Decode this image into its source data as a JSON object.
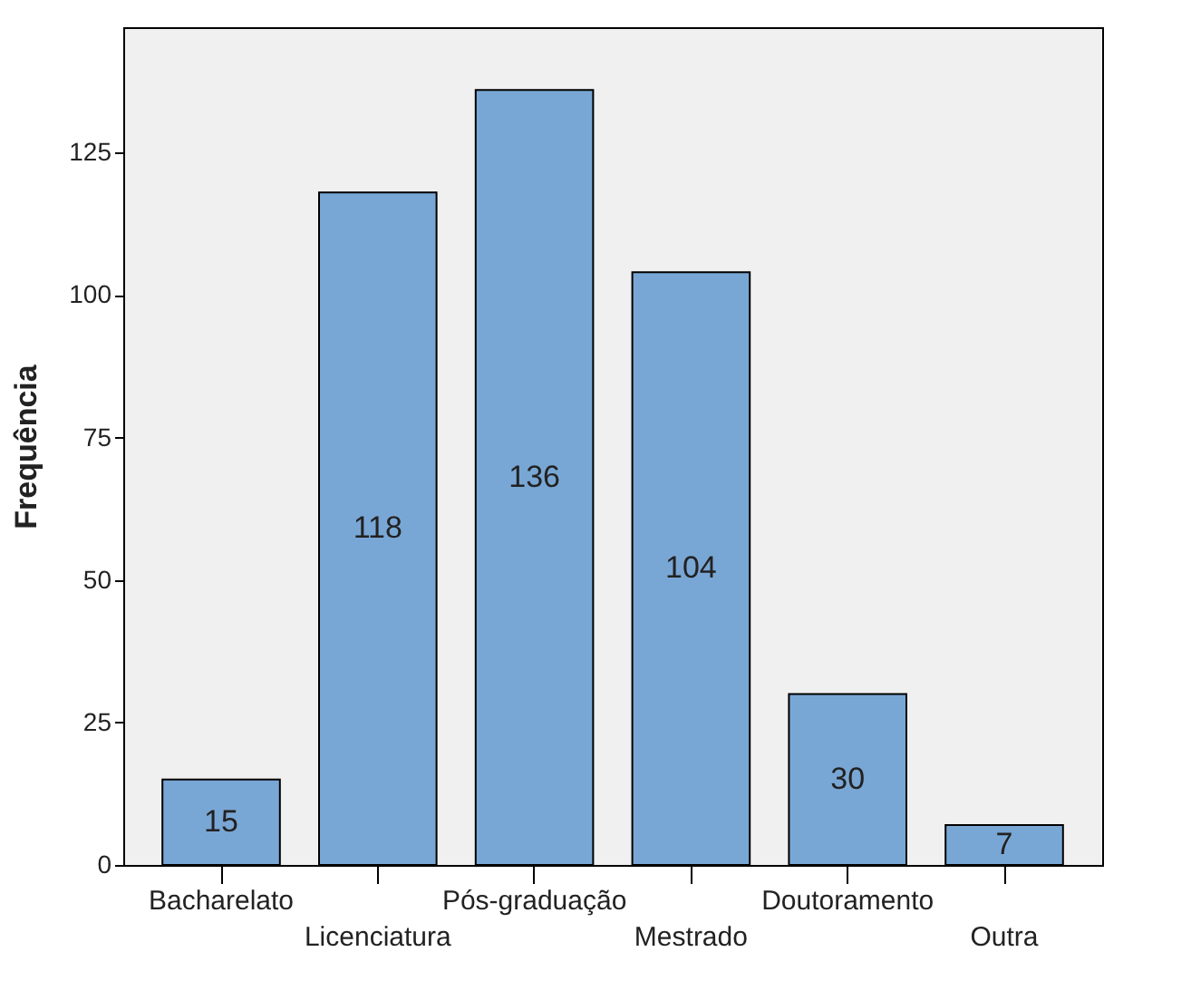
{
  "chart_data": {
    "type": "bar",
    "ylabel": "Frequência",
    "categories": [
      "Bacharelato",
      "Licenciatura",
      "Pós-graduação",
      "Mestrado",
      "Doutoramento",
      "Outra"
    ],
    "values": [
      15,
      118,
      136,
      104,
      30,
      7
    ],
    "color": "#79a7d5",
    "ylim": [
      0,
      147
    ],
    "yticks": [
      0,
      25,
      50,
      75,
      100,
      125
    ],
    "grid": false,
    "data_labels": true
  }
}
